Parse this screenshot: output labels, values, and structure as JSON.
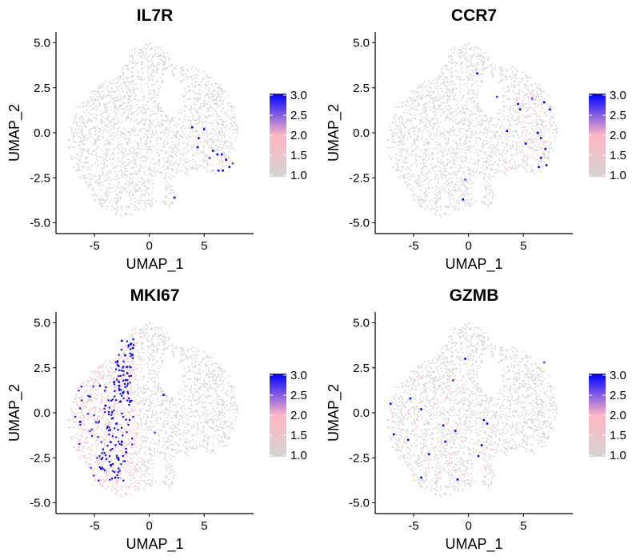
{
  "chart_data": [
    {
      "type": "scatter",
      "title": "IL7R",
      "xlabel": "UMAP_1",
      "ylabel": "UMAP_2",
      "xlim": [
        -8.5,
        9.5
      ],
      "ylim": [
        -5.6,
        5.6
      ],
      "xticks": [
        -5,
        0,
        5
      ],
      "yticks": [
        -5.0,
        -2.5,
        0.0,
        2.5,
        5.0
      ],
      "xtick_labels": [
        "-5",
        "0",
        "5"
      ],
      "ytick_labels": [
        "-5.0",
        "-2.5",
        "0.0",
        "2.5",
        "5.0"
      ],
      "legend": {
        "min": 1.0,
        "max": 3.0,
        "ticks": [
          "3.0",
          "2.5",
          "2.0",
          "1.5",
          "1.0"
        ],
        "colors": [
          "#d3d3d3",
          "#ffb6c1",
          "#0000ff"
        ]
      },
      "expression_region": "right-lobe-lower",
      "expressing_points": [
        {
          "x": 5.0,
          "y": 0.2,
          "v": 3.0
        },
        {
          "x": 3.9,
          "y": 0.3,
          "v": 2.8
        },
        {
          "x": 4.5,
          "y": -0.3,
          "v": 2.7
        },
        {
          "x": 5.8,
          "y": -1.0,
          "v": 3.0
        },
        {
          "x": 6.2,
          "y": -1.2,
          "v": 3.0
        },
        {
          "x": 6.6,
          "y": -1.2,
          "v": 2.9
        },
        {
          "x": 7.0,
          "y": -1.5,
          "v": 3.0
        },
        {
          "x": 7.3,
          "y": -1.9,
          "v": 3.0
        },
        {
          "x": 6.7,
          "y": -2.1,
          "v": 2.8
        },
        {
          "x": 6.3,
          "y": -2.1,
          "v": 2.6
        },
        {
          "x": 4.4,
          "y": -0.8,
          "v": 2.5
        },
        {
          "x": 5.5,
          "y": -1.4,
          "v": 2.4
        },
        {
          "x": 2.3,
          "y": -3.6,
          "v": 2.9
        },
        {
          "x": 7.6,
          "y": -1.7,
          "v": 2.2
        }
      ]
    },
    {
      "type": "scatter",
      "title": "CCR7",
      "xlabel": "UMAP_1",
      "ylabel": "UMAP_2",
      "xlim": [
        -8.5,
        9.5
      ],
      "ylim": [
        -5.6,
        5.6
      ],
      "xticks": [
        -5,
        0,
        5
      ],
      "yticks": [
        -5.0,
        -2.5,
        0.0,
        2.5,
        5.0
      ],
      "xtick_labels": [
        "-5",
        "0",
        "5"
      ],
      "ytick_labels": [
        "-5.0",
        "-2.5",
        "0.0",
        "2.5",
        "5.0"
      ],
      "legend": {
        "min": 1.0,
        "max": 3.0,
        "ticks": [
          "3.0",
          "2.5",
          "2.0",
          "1.5",
          "1.0"
        ],
        "colors": [
          "#d3d3d3",
          "#ffb6c1",
          "#0000ff"
        ]
      },
      "expression_region": "right-lobe",
      "expressing_points": [
        {
          "x": 0.8,
          "y": 3.3,
          "v": 3.0
        },
        {
          "x": 4.5,
          "y": 1.6,
          "v": 3.0
        },
        {
          "x": 4.7,
          "y": 1.3,
          "v": 2.8
        },
        {
          "x": 6.9,
          "y": 1.7,
          "v": 3.0
        },
        {
          "x": 7.4,
          "y": 1.3,
          "v": 3.0
        },
        {
          "x": 3.5,
          "y": 0.1,
          "v": 3.0
        },
        {
          "x": 6.3,
          "y": 0.0,
          "v": 2.9
        },
        {
          "x": 6.6,
          "y": -0.3,
          "v": 3.0
        },
        {
          "x": 7.0,
          "y": -0.9,
          "v": 2.8
        },
        {
          "x": 6.6,
          "y": -1.4,
          "v": 3.0
        },
        {
          "x": 6.4,
          "y": -1.9,
          "v": 2.7
        },
        {
          "x": 7.1,
          "y": -1.8,
          "v": 2.6
        },
        {
          "x": 5.2,
          "y": -0.6,
          "v": 2.5
        },
        {
          "x": -0.5,
          "y": -3.7,
          "v": 3.0
        },
        {
          "x": -0.3,
          "y": -2.6,
          "v": 2.4
        },
        {
          "x": 2.6,
          "y": 2.0,
          "v": 2.3
        },
        {
          "x": 5.8,
          "y": 1.9,
          "v": 2.2
        }
      ]
    },
    {
      "type": "scatter",
      "title": "MKI67",
      "xlabel": "UMAP_1",
      "ylabel": "UMAP_2",
      "xlim": [
        -8.5,
        9.5
      ],
      "ylim": [
        -5.6,
        5.6
      ],
      "xticks": [
        -5,
        0,
        5
      ],
      "yticks": [
        -5.0,
        -2.5,
        0.0,
        2.5,
        5.0
      ],
      "xtick_labels": [
        "-5",
        "0",
        "5"
      ],
      "ytick_labels": [
        "-5.0",
        "-2.5",
        "0.0",
        "2.5",
        "5.0"
      ],
      "legend": {
        "min": 1.0,
        "max": 3.0,
        "ticks": [
          "3.0",
          "2.5",
          "2.0",
          "1.5",
          "1.0"
        ],
        "colors": [
          "#d3d3d3",
          "#ffb6c1",
          "#0000ff"
        ]
      },
      "expression_region": "left-lobe",
      "expressing_points": [
        {
          "x": -2.5,
          "y": 4.0,
          "v": 3.0
        },
        {
          "x": -2.2,
          "y": 3.2,
          "v": 3.0
        },
        {
          "x": -2.8,
          "y": 2.6,
          "v": 3.0
        },
        {
          "x": -2.0,
          "y": 2.2,
          "v": 3.0
        },
        {
          "x": -3.2,
          "y": 1.7,
          "v": 3.0
        },
        {
          "x": -2.4,
          "y": 1.1,
          "v": 2.9
        },
        {
          "x": -4.5,
          "y": 1.5,
          "v": 2.8
        },
        {
          "x": -5.4,
          "y": 0.9,
          "v": 3.0
        },
        {
          "x": -4.0,
          "y": 0.4,
          "v": 2.8
        },
        {
          "x": -3.0,
          "y": -0.6,
          "v": 2.7
        },
        {
          "x": -2.5,
          "y": -1.6,
          "v": 3.0
        },
        {
          "x": -2.1,
          "y": -2.2,
          "v": 3.0
        },
        {
          "x": -2.8,
          "y": -2.6,
          "v": 3.0
        },
        {
          "x": -3.5,
          "y": -2.9,
          "v": 3.0
        },
        {
          "x": -4.4,
          "y": -3.1,
          "v": 2.9
        },
        {
          "x": -3.1,
          "y": -3.6,
          "v": 2.8
        },
        {
          "x": -1.5,
          "y": 3.6,
          "v": 2.6
        },
        {
          "x": -6.3,
          "y": -0.5,
          "v": 2.5
        },
        {
          "x": 1.3,
          "y": 1.0,
          "v": 2.8
        },
        {
          "x": 0.5,
          "y": -1.1,
          "v": 2.4
        }
      ]
    },
    {
      "type": "scatter",
      "title": "GZMB",
      "xlabel": "UMAP_1",
      "ylabel": "UMAP_2",
      "xlim": [
        -8.5,
        9.5
      ],
      "ylim": [
        -5.6,
        5.6
      ],
      "xticks": [
        -5,
        0,
        5
      ],
      "yticks": [
        -5.0,
        -2.5,
        0.0,
        2.5,
        5.0
      ],
      "xtick_labels": [
        "-5",
        "0",
        "5"
      ],
      "ytick_labels": [
        "-5.0",
        "-2.5",
        "0.0",
        "2.5",
        "5.0"
      ],
      "legend": {
        "min": 1.0,
        "max": 3.0,
        "ticks": [
          "3.0",
          "2.5",
          "2.0",
          "1.5",
          "1.0"
        ],
        "colors": [
          "#d3d3d3",
          "#ffb6c1",
          "#0000ff"
        ]
      },
      "expression_region": "scattered-center",
      "expressing_points": [
        {
          "x": -7.1,
          "y": 0.5,
          "v": 3.0
        },
        {
          "x": -5.3,
          "y": 0.8,
          "v": 3.0
        },
        {
          "x": -4.3,
          "y": 0.2,
          "v": 2.8
        },
        {
          "x": -6.8,
          "y": -1.2,
          "v": 3.0
        },
        {
          "x": -5.5,
          "y": -1.5,
          "v": 2.9
        },
        {
          "x": -2.3,
          "y": -0.7,
          "v": 3.0
        },
        {
          "x": -2.1,
          "y": -1.6,
          "v": 3.0
        },
        {
          "x": -1.2,
          "y": -1.0,
          "v": 2.8
        },
        {
          "x": 1.4,
          "y": -0.4,
          "v": 3.0
        },
        {
          "x": 1.7,
          "y": -0.6,
          "v": 3.0
        },
        {
          "x": 1.2,
          "y": -1.8,
          "v": 2.9
        },
        {
          "x": 0.9,
          "y": -2.4,
          "v": 2.7
        },
        {
          "x": -1.0,
          "y": -3.7,
          "v": 3.0
        },
        {
          "x": -3.6,
          "y": -2.3,
          "v": 2.8
        },
        {
          "x": -4.3,
          "y": -3.6,
          "v": 2.6
        },
        {
          "x": -0.3,
          "y": 3.0,
          "v": 2.5
        },
        {
          "x": 6.9,
          "y": 2.8,
          "v": 2.4
        },
        {
          "x": -1.4,
          "y": 1.8,
          "v": 2.3
        }
      ]
    }
  ]
}
